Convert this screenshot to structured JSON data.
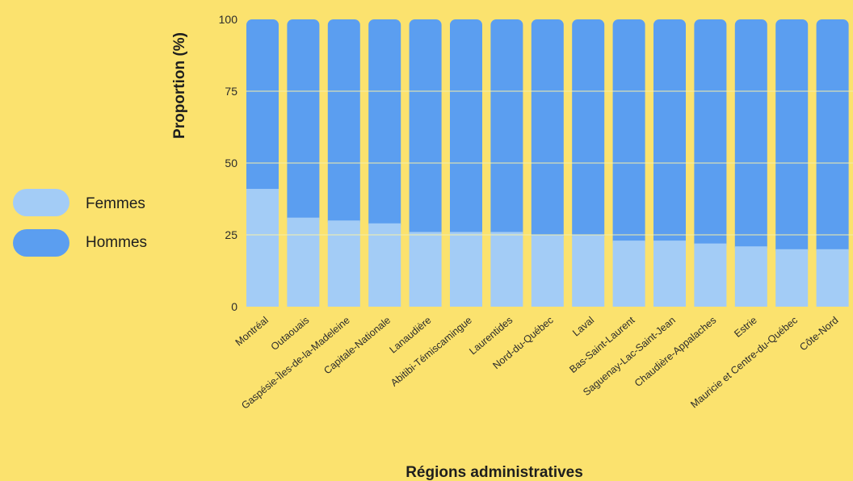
{
  "chart_data": {
    "type": "bar",
    "stacked": true,
    "title": "",
    "xlabel": "Régions administratives",
    "ylabel": "Proportion (%)",
    "ylim": [
      0,
      100
    ],
    "yticks": [
      0,
      25,
      50,
      75,
      100
    ],
    "grid": true,
    "legend_position": "left",
    "categories": [
      "Montréal",
      "Outaouais",
      "Gaspésie-Îles-de-la-Madeleine",
      "Capitale-Nationale",
      "Lanaudière",
      "Abitibi-Témiscamingue",
      "Laurentides",
      "Nord-du-Québec",
      "Laval",
      "Bas-Saint-Laurent",
      "Saguenay-Lac-Saint-Jean",
      "Chaudière-Appalaches",
      "Estrie",
      "Mauricie et Centre-du-Québec",
      "Côte-Nord"
    ],
    "series": [
      {
        "name": "Femmes",
        "color": "#A3CCF6",
        "values": [
          41,
          31,
          30,
          29,
          26,
          26,
          26,
          25,
          25,
          23,
          23,
          22,
          21,
          20,
          20
        ]
      },
      {
        "name": "Hommes",
        "color": "#5B9EF0",
        "values": [
          59,
          69,
          70,
          71,
          74,
          74,
          74,
          75,
          75,
          77,
          77,
          78,
          79,
          80,
          80
        ]
      }
    ],
    "colors": {
      "background": "#FBE26E",
      "grid": "#F6EFA8"
    }
  }
}
